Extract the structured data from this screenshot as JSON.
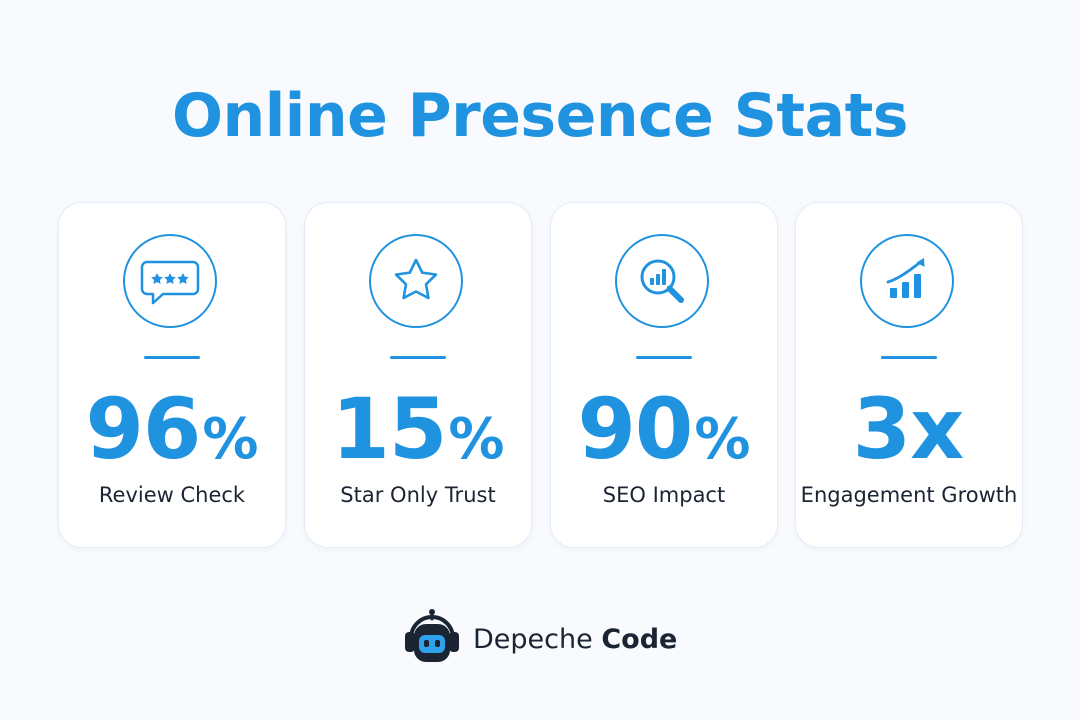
{
  "page": {
    "title": "Online Presence Stats",
    "accent_color": "#1f93e0",
    "text_color": "#1b2433"
  },
  "cards": [
    {
      "icon": "review-bubble-icon",
      "value": "96",
      "unit": "%",
      "label": "Review Check"
    },
    {
      "icon": "star-icon",
      "value": "15",
      "unit": "%",
      "label": "Star Only Trust"
    },
    {
      "icon": "seo-magnifier-icon",
      "value": "90",
      "unit": "%",
      "label": "SEO Impact"
    },
    {
      "icon": "growth-chart-icon",
      "value": "3x",
      "unit": "",
      "label": "Engagement Growth"
    }
  ],
  "brand": {
    "name_light": "Depeche",
    "name_bold": "Code",
    "logo_icon": "robot-headphones-icon"
  }
}
